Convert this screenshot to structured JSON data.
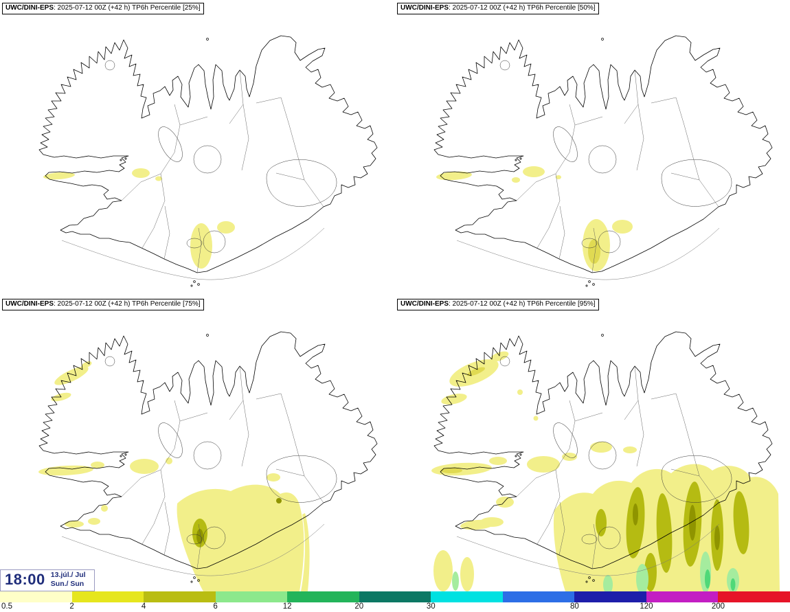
{
  "panels": [
    {
      "model": "UWC/DINI-EPS",
      "info": ": 2025-07-12 00Z (+42 h) TP6h Percentile [25%]",
      "percentile": "25%"
    },
    {
      "model": "UWC/DINI-EPS",
      "info": ": 2025-07-12 00Z (+42 h) TP6h Percentile [50%]",
      "percentile": "50%"
    },
    {
      "model": "UWC/DINI-EPS",
      "info": ": 2025-07-12 00Z (+42 h) TP6h Percentile [75%]",
      "percentile": "75%"
    },
    {
      "model": "UWC/DINI-EPS",
      "info": ": 2025-07-12 00Z (+42 h) TP6h Percentile [95%]",
      "percentile": "95%"
    }
  ],
  "time_panel": {
    "time": "18:00",
    "date": "13.júl./ Jul",
    "day": "Sun./ Sun"
  },
  "colorbar": {
    "description": "TP6h precipitation legend",
    "segments": [
      "#ffffc8",
      "#e6e61e",
      "#b9bd12",
      "#8ce88c",
      "#23b45a",
      "#0c7864",
      "#00e1e1",
      "#2d6ee6",
      "#1e1eaa",
      "#c31ec3",
      "#e61428"
    ],
    "ticks": [
      {
        "label": "0.5",
        "edge": 0
      },
      {
        "label": "2",
        "edge": 1
      },
      {
        "label": "4",
        "edge": 2
      },
      {
        "label": "6",
        "edge": 3
      },
      {
        "label": "12",
        "edge": 4
      },
      {
        "label": "20",
        "edge": 5
      },
      {
        "label": "30",
        "edge": 6
      },
      {
        "label": "80",
        "edge": 8
      },
      {
        "label": "120",
        "edge": 9
      },
      {
        "label": "200",
        "edge": 10
      }
    ]
  },
  "colors": {
    "time_text": "#1f2d7a",
    "precip_light": "#f2ef8a",
    "precip_core": "#e0da52",
    "precip_olive": "#b5bb12",
    "precip_dark_olive": "#8f9400",
    "precip_green_light": "#a5ec9e",
    "precip_green": "#4fd878"
  }
}
